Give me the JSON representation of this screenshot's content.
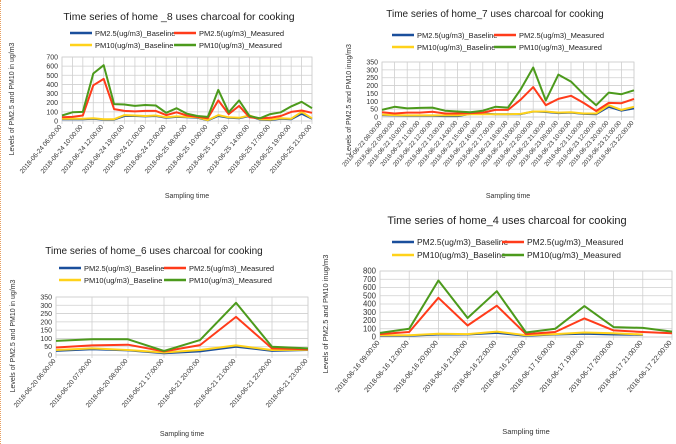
{
  "colors": {
    "pm25_baseline": "#1a4f9c",
    "pm25_measured": "#ff3b1a",
    "pm10_baseline": "#ffd21a",
    "pm10_measured": "#4c9a1c",
    "grid": "#cfcfcf"
  },
  "chart_data": [
    {
      "type": "line",
      "title": "Time series of home _8 uses charcoal for cooking",
      "xlabel": "Sampling time",
      "ylabel": "Levels of PM2.5 and PM10 in ug/m3",
      "ylim": [
        0,
        700
      ],
      "yticks": [
        "0",
        "100",
        "200",
        "300",
        "400",
        "500",
        "600",
        "700"
      ],
      "grid": true,
      "legend": "top",
      "label_every": 2,
      "categories": [
        "2018-06-24 06:00:00",
        "",
        "2018-06-24 10:00:00",
        "",
        "2018-06-24 12:00:00",
        "",
        "2018-06-24 19:00:00",
        "",
        "2018-06-24 21:00:00",
        "",
        "2018-06-24 23:00:00",
        "",
        "2018-06-25 08:00:00",
        "",
        "2018-06-25 10:00:00",
        "",
        "2018-06-25 12:00:00",
        "",
        "2018-06-25 14:00:00",
        "",
        "2018-06-25 17:00:00",
        "",
        "2018-06-25 19:00:00",
        "",
        "2018-06-25 21:00:00"
      ],
      "series": [
        {
          "name": "PM2.5(ug/m3)_Baseline",
          "key": "pm25_baseline",
          "values": [
            20,
            20,
            20,
            25,
            15,
            15,
            55,
            55,
            50,
            55,
            35,
            45,
            40,
            35,
            8,
            55,
            35,
            30,
            55,
            15,
            10,
            25,
            20,
            80,
            25
          ]
        },
        {
          "name": "PM2.5(ug/m3)_Measured",
          "key": "pm25_measured",
          "values": [
            40,
            45,
            60,
            390,
            460,
            130,
            110,
            105,
            110,
            110,
            65,
            95,
            60,
            45,
            30,
            225,
            75,
            165,
            40,
            30,
            35,
            55,
            100,
            115,
            90
          ]
        },
        {
          "name": "PM10(ug/m3)_Baseline",
          "key": "pm10_baseline",
          "values": [
            25,
            25,
            25,
            30,
            20,
            20,
            65,
            60,
            55,
            60,
            40,
            50,
            45,
            40,
            10,
            65,
            40,
            35,
            60,
            20,
            15,
            30,
            25,
            100,
            30
          ]
        },
        {
          "name": "PM10(ug/m3)_Measured",
          "key": "pm10_measured",
          "values": [
            60,
            95,
            100,
            520,
            610,
            185,
            180,
            165,
            175,
            170,
            90,
            140,
            80,
            55,
            45,
            340,
            95,
            225,
            55,
            30,
            75,
            95,
            160,
            210,
            140
          ]
        }
      ]
    },
    {
      "type": "line",
      "title": "Time series of home_7 uses charcoal for cooking",
      "xlabel": "Sampling time",
      "ylabel": "Levels of PM2.5 and PM10 inug/m3",
      "ylim": [
        0,
        350
      ],
      "yticks": [
        "0",
        "50",
        "100",
        "150",
        "200",
        "250",
        "300",
        "350"
      ],
      "grid": true,
      "legend": "top",
      "label_every": 1,
      "categories": [
        "2018-06-22 08:00:00",
        "2018-06-22 09:00:00",
        "2018-06-22 10:00:00",
        "2018-06-22 11:00:00",
        "2018-06-22 12:00:00",
        "2018-06-22 13:00:00",
        "2018-06-22 14:00:00",
        "2018-06-22 15:00:00",
        "2018-06-22 16:00:00",
        "2018-06-22 17:00:00",
        "2018-06-22 18:00:00",
        "2018-06-22 19:00:00",
        "2018-06-22 20:00:00",
        "2018-06-22 21:00:00",
        "2018-06-23 09:00:00",
        "2018-06-23 10:00:00",
        "2018-06-23 11:00:00",
        "2018-06-23 12:00:00",
        "2018-06-23 20:00:00",
        "2018-06-23 21:00:00",
        "2018-06-23 22:00:00"
      ],
      "series": [
        {
          "name": "PM2.5(ug/m3)_Baseline",
          "key": "pm25_baseline",
          "values": [
            12,
            10,
            8,
            8,
            8,
            6,
            6,
            20,
            22,
            18,
            18,
            18,
            35,
            32,
            25,
            28,
            20,
            18,
            65,
            40,
            55
          ]
        },
        {
          "name": "PM2.5(ug/m3)_Measured",
          "key": "pm25_measured",
          "values": [
            30,
            22,
            28,
            28,
            33,
            22,
            22,
            25,
            28,
            45,
            45,
            110,
            190,
            75,
            115,
            135,
            90,
            38,
            90,
            88,
            115
          ]
        },
        {
          "name": "PM10(ug/m3)_Baseline",
          "key": "pm10_baseline",
          "values": [
            15,
            12,
            10,
            10,
            10,
            10,
            10,
            18,
            18,
            18,
            18,
            20,
            35,
            35,
            28,
            30,
            22,
            22,
            75,
            45,
            65
          ]
        },
        {
          "name": "PM10(ug/m3)_Measured",
          "key": "pm10_measured",
          "values": [
            45,
            65,
            55,
            58,
            60,
            40,
            35,
            30,
            40,
            65,
            60,
            175,
            315,
            105,
            270,
            225,
            145,
            75,
            155,
            145,
            170
          ]
        }
      ]
    },
    {
      "type": "line",
      "title": "Time series of home_6 uses charcoal for cooking",
      "xlabel": "Sampling time",
      "ylabel": "Levels of PM2.5 and PM10 in ug/m3",
      "ylim": [
        0,
        350
      ],
      "yticks": [
        "0",
        "50",
        "100",
        "150",
        "200",
        "250",
        "300",
        "350"
      ],
      "grid": true,
      "legend": "top",
      "label_every": 1,
      "categories": [
        "2018-06-20 06:00:00",
        "2018-06-20 07:00:00",
        "2018-06-20 08:00:00",
        "2018-06-21 17:00:00",
        "2018-06-21 20:00:00",
        "2018-06-21 21:00:00",
        "2018-06-21 22:00:00",
        "2018-06-21 23:00:00"
      ],
      "series": [
        {
          "name": "PM2.5(ug/m3)_Baseline",
          "key": "pm25_baseline",
          "values": [
            25,
            35,
            28,
            10,
            22,
            50,
            25,
            30
          ]
        },
        {
          "name": "PM2.5(ug/m3)_Measured",
          "key": "pm25_measured",
          "values": [
            45,
            58,
            62,
            22,
            60,
            230,
            40,
            35
          ]
        },
        {
          "name": "PM10(ug/m3)_Baseline",
          "key": "pm10_baseline",
          "values": [
            30,
            40,
            30,
            15,
            30,
            58,
            30,
            32
          ]
        },
        {
          "name": "PM10(ug/m3)_Measured",
          "key": "pm10_measured",
          "values": [
            85,
            95,
            95,
            25,
            90,
            315,
            50,
            40
          ]
        }
      ]
    },
    {
      "type": "line",
      "title": "Time series of home_4 uses charcoal for cooking",
      "xlabel": "Sampling time",
      "ylabel": "Levels of PM2.5 and PM10 inug/m3",
      "ylim": [
        0,
        800
      ],
      "yticks": [
        "0",
        "100",
        "200",
        "300",
        "400",
        "500",
        "600",
        "700",
        "800"
      ],
      "grid": true,
      "legend": "top",
      "label_every": 1,
      "categories": [
        "2018-06-16 09:00:00",
        "2018-06-16 12:00:00",
        "2018-06-16 20:00:00",
        "2018-06-16 21:00:00",
        "2018-06-16 22:00:00",
        "2018-06-16 23:00:00",
        "2018-06-17 16:00:00",
        "2018-06-17 19:00:00",
        "2018-06-17 20:00:00",
        "2018-06-17 21:00:00",
        "2018-06-17 22:00:00"
      ],
      "series": [
        {
          "name": "PM2.5(ug/m3)_Baseline",
          "key": "pm25_baseline",
          "values": [
            15,
            15,
            30,
            30,
            50,
            15,
            30,
            40,
            30,
            25,
            null
          ]
        },
        {
          "name": "PM2.5(ug/m3)_Measured",
          "key": "pm25_measured",
          "values": [
            35,
            60,
            475,
            140,
            380,
            35,
            60,
            225,
            80,
            60,
            45
          ]
        },
        {
          "name": "PM10(ug/m3)_Baseline",
          "key": "pm10_baseline",
          "values": [
            20,
            20,
            40,
            35,
            65,
            20,
            35,
            55,
            45,
            30,
            null
          ]
        },
        {
          "name": "PM10(ug/m3)_Measured",
          "key": "pm10_measured",
          "values": [
            50,
            100,
            685,
            230,
            555,
            55,
            100,
            375,
            120,
            110,
            65
          ]
        }
      ]
    }
  ]
}
